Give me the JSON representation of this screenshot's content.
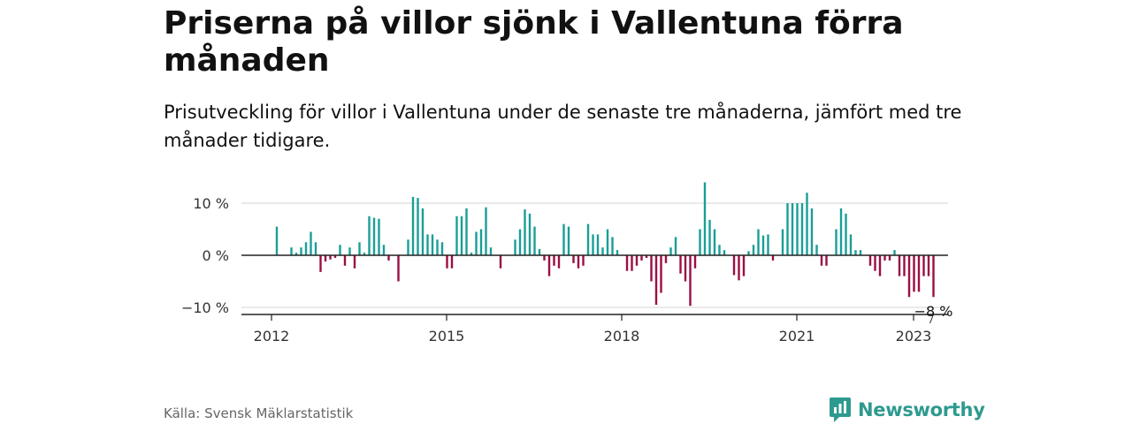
{
  "title": "Priserna på villor sjönk i Vallentuna förra månaden",
  "subtitle": "Prisutveckling för villor i Vallentuna under de senaste tre månaderna, jämfört med tre månader tidigare.",
  "source": "Källa: Svensk Mäklarstatistik",
  "brand": "Newsworthy",
  "colors": {
    "positive": "#1a9e96",
    "negative": "#9b0e45",
    "brand": "#2e9a8f"
  },
  "chart_data": {
    "type": "bar",
    "x_start": "2012-01",
    "x_step": "month",
    "ylim": [
      -12,
      15
    ],
    "yticks": [
      10,
      0,
      -10
    ],
    "ytick_labels": [
      "10 %",
      "0 %",
      "−10 %"
    ],
    "xticks": [
      "2012",
      "2015",
      "2018",
      "2021",
      "2023"
    ],
    "annotation": "−8 %",
    "grid": true,
    "values": [
      5.5,
      0,
      0,
      1.5,
      0.5,
      1.5,
      2.5,
      4.5,
      2.5,
      -3.2,
      -1.2,
      -0.8,
      -0.5,
      2,
      -2,
      1.5,
      -2.5,
      2.5,
      0.5,
      7.5,
      7.2,
      7,
      2,
      -1,
      0,
      -5,
      0,
      3,
      11.2,
      11,
      9,
      4,
      4,
      3,
      2.5,
      -2.5,
      -2.5,
      7.5,
      7.5,
      9,
      0.5,
      4.5,
      5,
      9.2,
      1.5,
      0,
      -2.5,
      0,
      0,
      3,
      5,
      8.8,
      8,
      5.5,
      1.2,
      -1,
      -4,
      -2,
      -2.5,
      6,
      5.5,
      -1.5,
      -2.5,
      -2,
      6,
      4,
      4,
      1.5,
      5,
      3.5,
      1,
      0,
      -3,
      -3,
      -2,
      -1,
      -0.5,
      -5,
      -9.5,
      -7.2,
      -1.5,
      1.5,
      3.5,
      -3.5,
      -5,
      -9.7,
      -2.5,
      5,
      14,
      6.8,
      5,
      2,
      1,
      0,
      -3.8,
      -4.8,
      -4,
      0.8,
      2,
      5,
      3.8,
      4,
      -1,
      0,
      5,
      10,
      10,
      10,
      10,
      12,
      9,
      2,
      -2,
      -2,
      0,
      5,
      9,
      8,
      4,
      1,
      1,
      0,
      -2,
      -3,
      -4,
      -1,
      -1,
      1,
      -4,
      -4,
      -8,
      -7,
      -7,
      -4,
      -4,
      -8
    ]
  }
}
